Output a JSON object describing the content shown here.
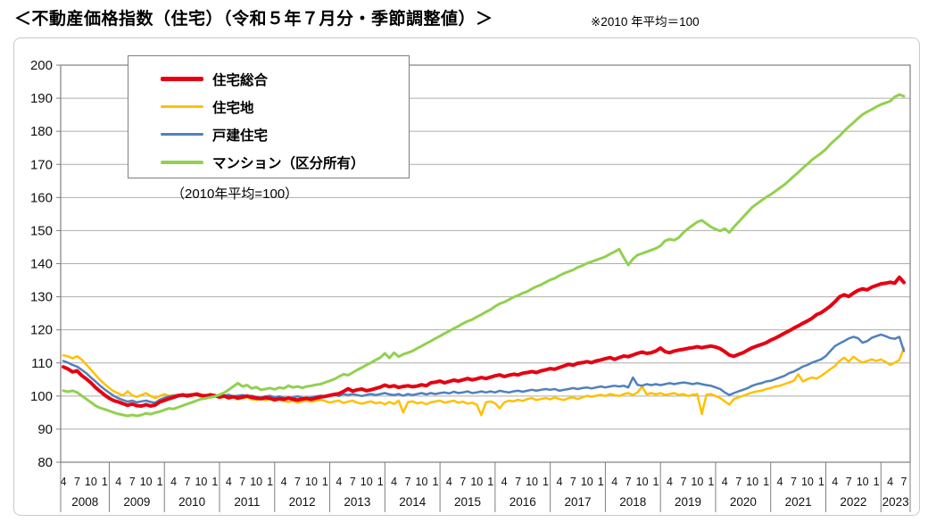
{
  "title": "＜不動産価格指数（住宅）（令和５年７月分・季節調整値）＞",
  "note": "※2010 年平均＝100",
  "legend": {
    "subtitle": "（2010年平均=100）"
  },
  "chart_data": {
    "type": "line",
    "x_start": "2008-04",
    "x_end": "2023-07",
    "x_frequency": "monthly",
    "ylim": [
      80,
      200
    ],
    "y_ticks": [
      80,
      90,
      100,
      110,
      120,
      130,
      140,
      150,
      160,
      170,
      180,
      190,
      200
    ],
    "grid": true,
    "legend_position": "top-left-inside",
    "x_axis_years": [
      {
        "year": "2008",
        "months": [
          4,
          7,
          10,
          1
        ]
      },
      {
        "year": "2009",
        "months": [
          4,
          7,
          10,
          1
        ]
      },
      {
        "year": "2010",
        "months": [
          4,
          7,
          10,
          1
        ]
      },
      {
        "year": "2011",
        "months": [
          4,
          7,
          10,
          1
        ]
      },
      {
        "year": "2012",
        "months": [
          4,
          7,
          10,
          1
        ]
      },
      {
        "year": "2013",
        "months": [
          4,
          7,
          10,
          1
        ]
      },
      {
        "year": "2014",
        "months": [
          4,
          7,
          10,
          1
        ]
      },
      {
        "year": "2015",
        "months": [
          4,
          7,
          10,
          1
        ]
      },
      {
        "year": "2016",
        "months": [
          4,
          7,
          10,
          1
        ]
      },
      {
        "year": "2017",
        "months": [
          4,
          7,
          10,
          1
        ]
      },
      {
        "year": "2018",
        "months": [
          4,
          7,
          10,
          1
        ]
      },
      {
        "year": "2019",
        "months": [
          4,
          7,
          10,
          1
        ]
      },
      {
        "year": "2020",
        "months": [
          4,
          7,
          10,
          1
        ]
      },
      {
        "year": "2021",
        "months": [
          4,
          7,
          10,
          1
        ]
      },
      {
        "year": "2022",
        "months": [
          4,
          7,
          10,
          1
        ]
      },
      {
        "year": "2023",
        "months": [
          4,
          7
        ]
      }
    ],
    "series": [
      {
        "name": "住宅総合",
        "color": "#e60012",
        "width": 4,
        "values": [
          108.8,
          108.2,
          107.3,
          107.6,
          106.2,
          105.2,
          104.0,
          102.6,
          101.4,
          100.3,
          99.3,
          98.6,
          98.2,
          97.7,
          97.2,
          97.6,
          97.1,
          97.0,
          97.4,
          97.0,
          97.3,
          98.2,
          98.7,
          99.2,
          99.6,
          100.1,
          100.4,
          100.0,
          100.3,
          100.6,
          100.2,
          100.0,
          100.4,
          100.1,
          99.7,
          100.0,
          99.5,
          99.8,
          99.4,
          99.7,
          100.0,
          99.6,
          99.4,
          99.2,
          99.5,
          99.3,
          98.9,
          99.2,
          99.0,
          99.4,
          99.0,
          98.8,
          99.1,
          99.3,
          99.0,
          99.4,
          99.7,
          99.9,
          100.2,
          100.5,
          100.7,
          101.4,
          102.2,
          101.5,
          101.9,
          102.1,
          101.6,
          101.9,
          102.3,
          102.7,
          103.3,
          102.8,
          103.1,
          102.6,
          102.9,
          103.1,
          102.8,
          103.0,
          103.4,
          103.1,
          104.0,
          104.2,
          104.5,
          104.0,
          104.4,
          104.8,
          104.5,
          104.9,
          105.3,
          104.9,
          105.2,
          105.6,
          105.3,
          105.7,
          106.1,
          106.4,
          105.9,
          106.3,
          106.6,
          106.4,
          106.9,
          107.1,
          107.4,
          107.1,
          107.6,
          107.9,
          108.3,
          108.1,
          108.6,
          109.1,
          109.6,
          109.3,
          109.9,
          110.1,
          110.4,
          110.1,
          110.6,
          110.9,
          111.3,
          111.6,
          111.1,
          111.6,
          112.1,
          111.9,
          112.4,
          112.9,
          113.3,
          112.9,
          113.1,
          113.6,
          114.5,
          113.4,
          113.1,
          113.6,
          113.9,
          114.1,
          114.4,
          114.6,
          114.9,
          114.6,
          114.9,
          115.1,
          114.8,
          114.3,
          113.4,
          112.4,
          112.0,
          112.6,
          113.1,
          113.9,
          114.6,
          115.1,
          115.6,
          116.1,
          116.9,
          117.5,
          118.2,
          119.0,
          119.7,
          120.5,
          121.2,
          122.0,
          122.7,
          123.5,
          124.6,
          125.2,
          126.2,
          127.2,
          128.5,
          130.0,
          130.6,
          130.1,
          131.1,
          131.9,
          132.4,
          132.1,
          132.9,
          133.4,
          133.9,
          134.1,
          134.4,
          134.1,
          135.9,
          134.3
        ]
      },
      {
        "name": "住宅地",
        "color": "#ffc000",
        "width": 2.5,
        "values": [
          112.3,
          112.0,
          111.4,
          112.0,
          111.0,
          109.5,
          108.0,
          106.4,
          104.9,
          103.6,
          102.4,
          101.4,
          100.8,
          100.2,
          101.4,
          100.2,
          99.7,
          100.3,
          100.9,
          100.0,
          99.4,
          100.0,
          100.6,
          100.0,
          100.3,
          99.9,
          100.3,
          100.6,
          100.0,
          100.3,
          99.7,
          100.0,
          100.4,
          100.0,
          99.4,
          99.8,
          99.2,
          99.5,
          99.0,
          99.3,
          99.6,
          99.0,
          98.8,
          99.1,
          98.8,
          99.1,
          98.5,
          98.9,
          98.5,
          98.2,
          98.6,
          98.0,
          98.4,
          98.6,
          98.3,
          98.6,
          98.9,
          98.5,
          98.0,
          98.4,
          98.6,
          97.9,
          98.3,
          98.6,
          98.0,
          97.7,
          98.1,
          98.4,
          97.8,
          98.1,
          97.5,
          98.2,
          97.6,
          98.6,
          95.0,
          98.1,
          98.4,
          97.8,
          98.1,
          97.5,
          98.1,
          98.4,
          98.6,
          98.0,
          98.3,
          98.6,
          98.0,
          98.3,
          97.7,
          98.0,
          97.4,
          94.2,
          98.1,
          98.4,
          97.8,
          96.3,
          98.1,
          98.6,
          98.4,
          98.9,
          98.5,
          99.1,
          99.4,
          98.8,
          99.1,
          99.4,
          99.0,
          99.6,
          99.1,
          98.8,
          99.4,
          99.6,
          99.1,
          99.6,
          100.1,
          99.8,
          100.1,
          100.4,
          100.0,
          100.6,
          100.3,
          100.0,
          100.6,
          100.9,
          100.3,
          101.1,
          102.9,
          100.5,
          100.9,
          100.5,
          100.9,
          100.3,
          100.6,
          100.9,
          100.3,
          100.6,
          100.0,
          100.4,
          100.6,
          94.6,
          100.4,
          100.6,
          100.0,
          99.4,
          98.4,
          97.4,
          99.1,
          99.6,
          100.1,
          100.6,
          101.1,
          101.4,
          101.6,
          102.1,
          102.4,
          102.9,
          103.1,
          103.6,
          104.1,
          104.6,
          106.6,
          104.4,
          105.1,
          105.6,
          105.3,
          106.1,
          107.1,
          108.1,
          109.1,
          110.6,
          111.6,
          110.4,
          111.9,
          110.9,
          110.1,
          110.6,
          111.1,
          110.6,
          111.1,
          110.3,
          109.4,
          110.1,
          110.9,
          114.5
        ]
      },
      {
        "name": "戸建住宅",
        "color": "#4f81bd",
        "width": 2.5,
        "values": [
          110.6,
          110.1,
          109.4,
          108.9,
          107.9,
          106.9,
          105.6,
          104.4,
          103.1,
          102.0,
          101.0,
          100.0,
          99.3,
          98.8,
          98.3,
          98.6,
          98.1,
          98.4,
          98.6,
          98.2,
          98.0,
          98.9,
          99.4,
          99.9,
          100.1,
          100.4,
          100.0,
          100.4,
          100.6,
          100.2,
          100.0,
          100.4,
          100.1,
          100.3,
          99.9,
          100.1,
          100.4,
          99.9,
          100.1,
          100.3,
          99.9,
          100.1,
          99.7,
          99.5,
          99.9,
          100.1,
          99.6,
          99.9,
          99.5,
          99.3,
          99.6,
          99.9,
          99.5,
          99.3,
          99.6,
          99.9,
          100.1,
          99.9,
          100.1,
          100.4,
          100.0,
          100.6,
          100.3,
          100.6,
          100.3,
          100.0,
          100.4,
          100.6,
          100.3,
          100.6,
          100.9,
          100.5,
          100.3,
          100.6,
          100.1,
          100.6,
          100.3,
          100.6,
          100.9,
          100.5,
          100.9,
          100.6,
          100.9,
          101.1,
          100.8,
          101.3,
          100.9,
          101.1,
          101.4,
          100.9,
          101.1,
          101.4,
          101.1,
          101.4,
          101.1,
          101.6,
          101.3,
          101.1,
          101.4,
          101.6,
          101.3,
          101.6,
          101.9,
          101.6,
          101.9,
          102.1,
          101.9,
          102.1,
          101.6,
          101.9,
          102.1,
          102.4,
          102.1,
          102.4,
          102.6,
          102.3,
          102.6,
          102.9,
          102.6,
          102.9,
          103.1,
          102.9,
          103.1,
          102.6,
          105.6,
          103.4,
          103.1,
          103.6,
          103.3,
          103.6,
          103.3,
          103.6,
          103.9,
          103.6,
          103.9,
          104.1,
          103.9,
          103.6,
          103.9,
          103.6,
          103.3,
          103.1,
          102.6,
          102.1,
          101.1,
          100.3,
          100.9,
          101.4,
          101.9,
          102.4,
          103.1,
          103.6,
          103.9,
          104.4,
          104.6,
          105.1,
          105.6,
          106.1,
          106.9,
          107.4,
          108.1,
          108.9,
          109.4,
          110.1,
          110.6,
          111.1,
          112.1,
          113.6,
          115.1,
          115.9,
          116.6,
          117.4,
          117.9,
          117.5,
          116.1,
          116.6,
          117.6,
          118.1,
          118.6,
          118.1,
          117.5,
          117.3,
          117.9,
          113.6
        ]
      },
      {
        "name": "マンション（区分所有）",
        "color": "#92d050",
        "width": 3,
        "values": [
          101.6,
          101.3,
          101.6,
          101.1,
          100.1,
          99.1,
          98.1,
          97.1,
          96.4,
          96.0,
          95.5,
          95.0,
          94.6,
          94.3,
          94.0,
          94.3,
          94.0,
          94.3,
          94.8,
          94.5,
          95.0,
          95.3,
          95.8,
          96.3,
          96.1,
          96.6,
          97.1,
          97.6,
          98.1,
          98.6,
          99.1,
          99.3,
          99.6,
          99.9,
          100.4,
          101.0,
          101.9,
          102.9,
          103.9,
          102.9,
          103.3,
          102.3,
          102.7,
          101.9,
          102.1,
          102.4,
          102.0,
          102.6,
          102.3,
          103.1,
          102.6,
          102.9,
          102.5,
          102.9,
          103.1,
          103.4,
          103.6,
          104.1,
          104.6,
          105.1,
          105.9,
          106.6,
          106.3,
          107.1,
          107.9,
          108.6,
          109.4,
          110.1,
          110.9,
          111.6,
          112.9,
          111.5,
          113.1,
          111.9,
          112.6,
          113.1,
          113.6,
          114.4,
          115.1,
          115.9,
          116.6,
          117.4,
          118.1,
          118.9,
          119.6,
          120.4,
          121.1,
          121.9,
          122.6,
          123.1,
          123.9,
          124.6,
          125.4,
          126.1,
          127.1,
          127.9,
          128.4,
          129.1,
          129.9,
          130.4,
          131.1,
          131.6,
          132.4,
          133.1,
          133.6,
          134.4,
          135.1,
          135.6,
          136.4,
          137.1,
          137.6,
          138.1,
          138.9,
          139.4,
          140.1,
          140.6,
          141.1,
          141.6,
          142.1,
          142.9,
          143.6,
          144.4,
          141.9,
          139.6,
          141.4,
          142.6,
          143.1,
          143.6,
          144.1,
          144.6,
          145.4,
          146.9,
          147.4,
          147.1,
          147.9,
          149.4,
          150.6,
          151.6,
          152.6,
          153.1,
          152.1,
          151.1,
          150.4,
          149.9,
          150.6,
          149.4,
          151.1,
          152.6,
          154.1,
          155.6,
          157.1,
          158.1,
          159.1,
          160.1,
          160.9,
          161.9,
          162.9,
          163.9,
          165.1,
          166.4,
          167.6,
          168.9,
          170.1,
          171.4,
          172.4,
          173.4,
          174.6,
          176.1,
          177.4,
          178.6,
          180.1,
          181.4,
          182.6,
          183.9,
          185.1,
          185.9,
          186.6,
          187.4,
          188.1,
          188.6,
          189.1,
          190.4,
          191.1,
          190.6
        ]
      }
    ]
  }
}
